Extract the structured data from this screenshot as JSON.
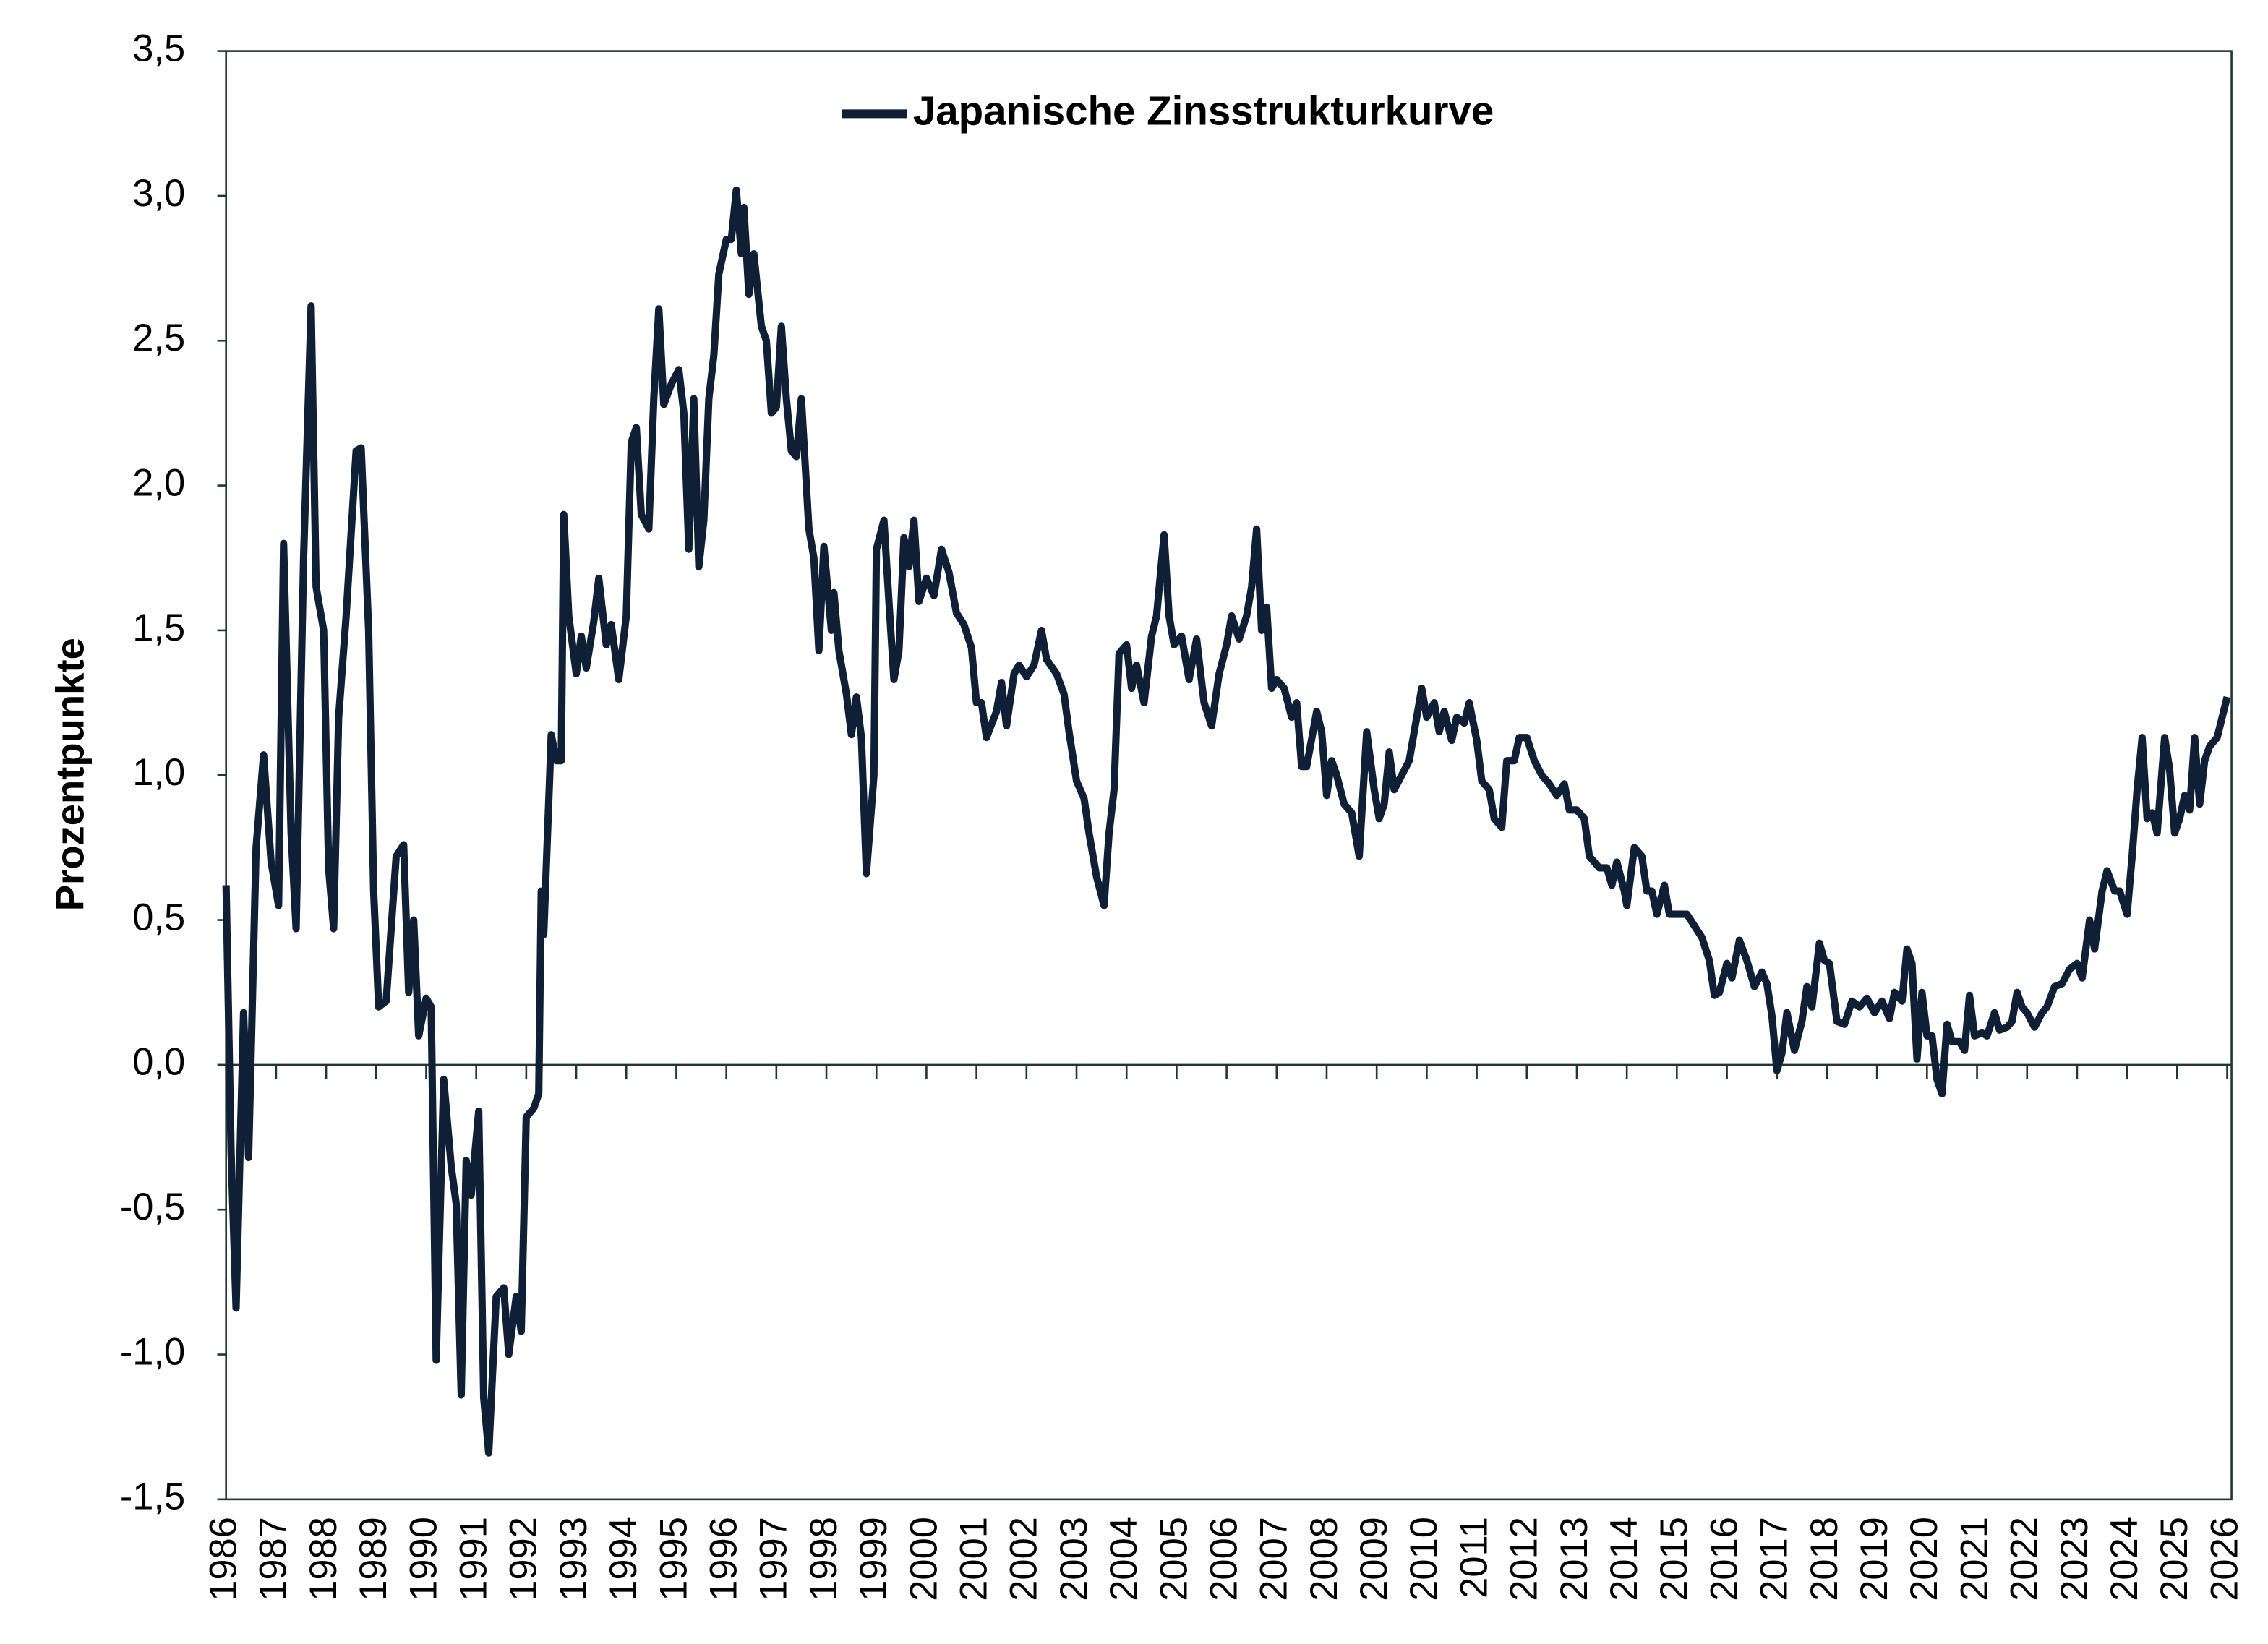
{
  "chart_data": {
    "type": "line",
    "ylabel": "Prozentpunkte",
    "legend": "top",
    "ylim": [
      -1.5,
      3.5
    ],
    "yticks": [
      {
        "value": -1.5,
        "label": "-1,5"
      },
      {
        "value": -1.0,
        "label": "-1,0"
      },
      {
        "value": -0.5,
        "label": "-0,5"
      },
      {
        "value": 0,
        "label": "0,0"
      },
      {
        "value": 0.5,
        "label": "0,5"
      },
      {
        "value": 1.0,
        "label": "1,0"
      },
      {
        "value": 1.5,
        "label": "1,5"
      },
      {
        "value": 2.0,
        "label": "2,0"
      },
      {
        "value": 2.5,
        "label": "2,5"
      },
      {
        "value": 3.0,
        "label": "3,0"
      },
      {
        "value": 3.5,
        "label": "3,5"
      }
    ],
    "xlim": [
      1986,
      2026
    ],
    "xticks": [
      1986,
      1987,
      1988,
      1989,
      1990,
      1991,
      1992,
      1993,
      1994,
      1995,
      1996,
      1997,
      1998,
      1999,
      2000,
      2001,
      2002,
      2003,
      2004,
      2005,
      2006,
      2007,
      2008,
      2009,
      2010,
      2011,
      2012,
      2013,
      2014,
      2015,
      2016,
      2017,
      2018,
      2019,
      2020,
      2021,
      2022,
      2023,
      2024,
      2025,
      2026
    ],
    "x": [
      1986.0,
      1986.1,
      1986.2,
      1986.35,
      1986.45,
      1986.6,
      1986.75,
      1986.9,
      1987.05,
      1987.15,
      1987.3,
      1987.4,
      1987.55,
      1987.7,
      1987.8,
      1987.95,
      1988.05,
      1988.15,
      1988.25,
      1988.4,
      1988.6,
      1988.7,
      1988.85,
      1988.95,
      1989.05,
      1989.2,
      1989.4,
      1989.55,
      1989.65,
      1989.75,
      1989.85,
      1990.0,
      1990.1,
      1990.2,
      1990.35,
      1990.5,
      1990.6,
      1990.7,
      1990.8,
      1990.9,
      1991.05,
      1991.15,
      1991.25,
      1991.4,
      1991.55,
      1991.65,
      1991.8,
      1991.9,
      1992.0,
      1992.15,
      1992.25,
      1992.3,
      1992.35,
      1992.5,
      1992.6,
      1992.7,
      1992.75,
      1992.85,
      1993.0,
      1993.1,
      1993.2,
      1993.35,
      1993.45,
      1993.6,
      1993.7,
      1993.85,
      1994.0,
      1994.1,
      1994.2,
      1994.3,
      1994.45,
      1994.55,
      1994.65,
      1994.75,
      1994.9,
      1995.05,
      1995.15,
      1995.25,
      1995.35,
      1995.45,
      1995.55,
      1995.65,
      1995.75,
      1995.85,
      1996.0,
      1996.1,
      1996.2,
      1996.3,
      1996.35,
      1996.45,
      1996.55,
      1996.7,
      1996.8,
      1996.9,
      1997.0,
      1997.1,
      1997.2,
      1997.3,
      1997.4,
      1997.5,
      1997.65,
      1997.75,
      1997.85,
      1997.95,
      1998.1,
      1998.15,
      1998.25,
      1998.4,
      1998.5,
      1998.6,
      1998.7,
      1998.8,
      1998.95,
      1999.0,
      1999.15,
      1999.25,
      1999.35,
      1999.45,
      1999.55,
      1999.65,
      1999.75,
      1999.85,
      2000.0,
      2000.15,
      2000.3,
      2000.45,
      2000.6,
      2000.75,
      2000.9,
      2001.0,
      2001.1,
      2001.2,
      2001.4,
      2001.5,
      2001.6,
      2001.75,
      2001.85,
      2002.0,
      2002.15,
      2002.3,
      2002.4,
      2002.6,
      2002.75,
      2002.85,
      2003.0,
      2003.15,
      2003.25,
      2003.4,
      2003.55,
      2003.65,
      2003.75,
      2003.85,
      2004.0,
      2004.1,
      2004.2,
      2004.35,
      2004.5,
      2004.6,
      2004.75,
      2004.85,
      2004.95,
      2005.1,
      2005.25,
      2005.4,
      2005.55,
      2005.7,
      2005.85,
      2006.0,
      2006.1,
      2006.25,
      2006.4,
      2006.5,
      2006.6,
      2006.7,
      2006.8,
      2006.9,
      2007.0,
      2007.15,
      2007.3,
      2007.4,
      2007.5,
      2007.6,
      2007.8,
      2007.9,
      2008.0,
      2008.1,
      2008.2,
      2008.35,
      2008.5,
      2008.65,
      2008.8,
      2008.95,
      2009.05,
      2009.15,
      2009.25,
      2009.35,
      2009.5,
      2009.65,
      2009.8,
      2009.9,
      2010.0,
      2010.15,
      2010.25,
      2010.35,
      2010.5,
      2010.6,
      2010.75,
      2010.85,
      2011.0,
      2011.1,
      2011.25,
      2011.35,
      2011.5,
      2011.6,
      2011.75,
      2011.85,
      2012.0,
      2012.15,
      2012.3,
      2012.45,
      2012.6,
      2012.75,
      2012.85,
      2013.0,
      2013.15,
      2013.25,
      2013.45,
      2013.6,
      2013.7,
      2013.8,
      2013.95,
      2014.0,
      2014.15,
      2014.3,
      2014.4,
      2014.5,
      2014.6,
      2014.75,
      2014.85,
      2015.0,
      2015.2,
      2015.35,
      2015.5,
      2015.65,
      2015.75,
      2015.85,
      2016.0,
      2016.1,
      2016.25,
      2016.4,
      2016.55,
      2016.7,
      2016.8,
      2016.9,
      2017.0,
      2017.1,
      2017.2,
      2017.35,
      2017.5,
      2017.6,
      2017.7,
      2017.85,
      2017.95,
      2018.05,
      2018.2,
      2018.35,
      2018.5,
      2018.65,
      2018.8,
      2018.95,
      2019.1,
      2019.25,
      2019.35,
      2019.5,
      2019.6,
      2019.7,
      2019.8,
      2019.9,
      2020.0,
      2020.1,
      2020.2,
      2020.3,
      2020.4,
      2020.5,
      2020.65,
      2020.75,
      2020.85,
      2020.95,
      2021.1,
      2021.2,
      2021.35,
      2021.45,
      2021.6,
      2021.7,
      2021.8,
      2021.9,
      2022.0,
      2022.15,
      2022.3,
      2022.4,
      2022.55,
      2022.7,
      2022.85,
      2023.0,
      2023.1,
      2023.25,
      2023.35,
      2023.5,
      2023.6,
      2023.75,
      2023.85,
      2024.0,
      2024.1,
      2024.2,
      2024.3,
      2024.4,
      2024.5,
      2024.6,
      2024.75,
      2024.85,
      2024.95,
      2025.05,
      2025.15,
      2025.25,
      2025.35,
      2025.45,
      2025.55,
      2025.65,
      2025.8,
      2025.9,
      2026.0
    ],
    "series": [
      {
        "name": "Japanische Zinsstrukturkurve",
        "color": "#0f1f36",
        "values": [
          0.62,
          -0.3,
          -0.84,
          0.18,
          -0.32,
          0.75,
          1.07,
          0.7,
          0.55,
          1.8,
          0.8,
          0.47,
          1.75,
          2.62,
          1.65,
          1.5,
          0.68,
          0.47,
          1.2,
          1.55,
          2.12,
          2.13,
          1.5,
          0.6,
          0.2,
          0.22,
          0.72,
          0.76,
          0.25,
          0.5,
          0.1,
          0.23,
          0.2,
          -1.02,
          -0.05,
          -0.35,
          -0.48,
          -1.14,
          -0.33,
          -0.45,
          -0.16,
          -1.15,
          -1.34,
          -0.8,
          -0.77,
          -1.0,
          -0.8,
          -0.92,
          -0.18,
          -0.15,
          -0.1,
          0.6,
          0.45,
          1.14,
          1.05,
          1.05,
          1.9,
          1.55,
          1.35,
          1.48,
          1.37,
          1.53,
          1.68,
          1.45,
          1.52,
          1.33,
          1.55,
          2.15,
          2.2,
          1.9,
          1.85,
          2.3,
          2.61,
          2.28,
          2.35,
          2.4,
          2.25,
          1.78,
          2.3,
          1.72,
          1.88,
          2.3,
          2.45,
          2.73,
          2.85,
          2.85,
          3.02,
          2.8,
          2.96,
          2.66,
          2.8,
          2.55,
          2.5,
          2.25,
          2.27,
          2.55,
          2.3,
          2.12,
          2.1,
          2.3,
          1.85,
          1.75,
          1.43,
          1.79,
          1.5,
          1.63,
          1.43,
          1.28,
          1.14,
          1.27,
          1.13,
          0.66,
          1.0,
          1.78,
          1.88,
          1.6,
          1.33,
          1.43,
          1.82,
          1.72,
          1.88,
          1.6,
          1.68,
          1.62,
          1.78,
          1.7,
          1.56,
          1.52,
          1.44,
          1.25,
          1.25,
          1.13,
          1.22,
          1.32,
          1.17,
          1.35,
          1.38,
          1.34,
          1.38,
          1.5,
          1.4,
          1.35,
          1.28,
          1.15,
          0.98,
          0.92,
          0.8,
          0.65,
          0.55,
          0.8,
          0.95,
          1.42,
          1.45,
          1.3,
          1.38,
          1.25,
          1.48,
          1.55,
          1.83,
          1.55,
          1.45,
          1.48,
          1.33,
          1.47,
          1.25,
          1.17,
          1.35,
          1.45,
          1.55,
          1.47,
          1.55,
          1.65,
          1.85,
          1.5,
          1.58,
          1.3,
          1.33,
          1.3,
          1.2,
          1.25,
          1.03,
          1.03,
          1.22,
          1.15,
          0.93,
          1.05,
          1.0,
          0.9,
          0.87,
          0.72,
          1.15,
          0.95,
          0.85,
          0.9,
          1.08,
          0.95,
          1.0,
          1.05,
          1.2,
          1.3,
          1.2,
          1.25,
          1.15,
          1.22,
          1.12,
          1.2,
          1.18,
          1.25,
          1.12,
          0.98,
          0.95,
          0.85,
          0.82,
          1.05,
          1.05,
          1.13,
          1.13,
          1.05,
          1.0,
          0.97,
          0.93,
          0.97,
          0.88,
          0.88,
          0.85,
          0.72,
          0.68,
          0.68,
          0.62,
          0.7,
          0.6,
          0.55,
          0.75,
          0.72,
          0.6,
          0.6,
          0.52,
          0.62,
          0.52,
          0.52,
          0.52,
          0.48,
          0.44,
          0.36,
          0.24,
          0.25,
          0.35,
          0.3,
          0.43,
          0.36,
          0.27,
          0.32,
          0.28,
          0.17,
          -0.02,
          0.04,
          0.18,
          0.05,
          0.15,
          0.27,
          0.2,
          0.42,
          0.36,
          0.35,
          0.15,
          0.14,
          0.22,
          0.2,
          0.23,
          0.18,
          0.22,
          0.16,
          0.25,
          0.22,
          0.4,
          0.35,
          0.02,
          0.25,
          0.1,
          0.1,
          -0.05,
          -0.1,
          0.14,
          0.08,
          0.08,
          0.05,
          0.24,
          0.1,
          0.11,
          0.1,
          0.18,
          0.12,
          0.13,
          0.15,
          0.25,
          0.2,
          0.18,
          0.13,
          0.18,
          0.2,
          0.27,
          0.28,
          0.33,
          0.35,
          0.3,
          0.5,
          0.4,
          0.6,
          0.67,
          0.6,
          0.6,
          0.52,
          0.72,
          0.95,
          1.13,
          0.85,
          0.87,
          0.8,
          1.13,
          1.02,
          0.8,
          0.85,
          0.93,
          0.88,
          1.13,
          0.9,
          1.05,
          1.1,
          1.13,
          1.2,
          1.27
        ]
      }
    ]
  }
}
